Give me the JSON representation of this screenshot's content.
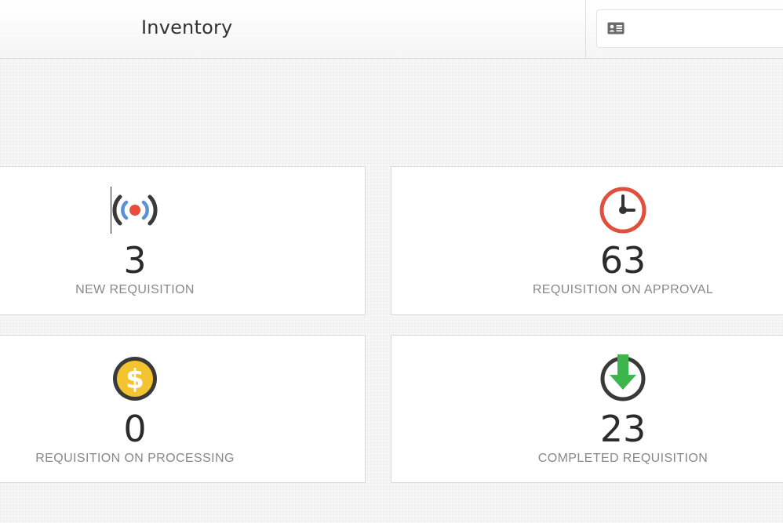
{
  "header": {
    "title": "Inventory",
    "profile_icon": "id-card-icon"
  },
  "cards": [
    {
      "count": "3",
      "label": "NEW REQUISITION",
      "icon": "broadcast-icon",
      "color": "#e74c3c"
    },
    {
      "count": "63",
      "label": "REQUISITION ON APPROVAL",
      "icon": "clock-icon",
      "color": "#e0503c"
    },
    {
      "count": "0",
      "label": "REQUISITION ON PROCESSING",
      "icon": "dollar-coin-icon",
      "color": "#f4c430"
    },
    {
      "count": "23",
      "label": "COMPLETED REQUISITION",
      "icon": "download-arrow-icon",
      "color": "#3cb54a"
    }
  ]
}
